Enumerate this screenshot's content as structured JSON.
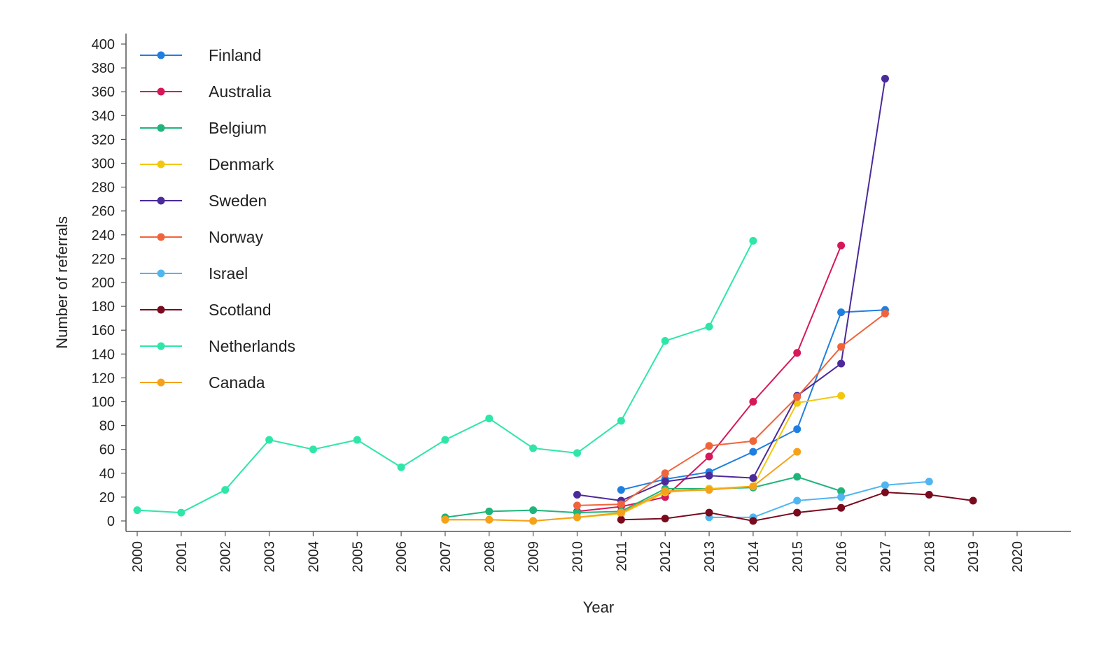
{
  "chart_data": {
    "type": "line",
    "title": "",
    "xlabel": "Year",
    "ylabel": "Number of referrals",
    "xlim": [
      2000,
      2020
    ],
    "ylim": [
      0,
      400
    ],
    "x_ticks": [
      2000,
      2001,
      2002,
      2003,
      2004,
      2005,
      2006,
      2007,
      2008,
      2009,
      2010,
      2011,
      2012,
      2013,
      2014,
      2015,
      2016,
      2017,
      2018,
      2019,
      2020
    ],
    "y_ticks": [
      0,
      20,
      40,
      60,
      80,
      100,
      120,
      140,
      160,
      180,
      200,
      220,
      240,
      260,
      280,
      300,
      320,
      340,
      360,
      380,
      400
    ],
    "grid": false,
    "legend_placement": "top-left",
    "series": [
      {
        "name": "Finland",
        "color": "#1f7fe0",
        "x": [
          2011,
          2012,
          2013,
          2014,
          2015,
          2016,
          2017
        ],
        "values": [
          26,
          35,
          41,
          58,
          77,
          175,
          177
        ]
      },
      {
        "name": "Australia",
        "color": "#d6185a",
        "x": [
          2010,
          2011,
          2012,
          2013,
          2014,
          2015,
          2016
        ],
        "values": [
          8,
          12,
          20,
          54,
          100,
          141,
          231
        ]
      },
      {
        "name": "Belgium",
        "color": "#1fb57a",
        "x": [
          2007,
          2008,
          2009,
          2010,
          2011,
          2012,
          2013,
          2014,
          2015,
          2016
        ],
        "values": [
          3,
          8,
          9,
          7,
          8,
          27,
          27,
          28,
          37,
          25
        ]
      },
      {
        "name": "Denmark",
        "color": "#f2c80f",
        "x": [
          2007,
          2008,
          2009,
          2010,
          2011,
          2012,
          2013,
          2014,
          2015,
          2016
        ],
        "values": [
          1,
          1,
          0,
          3,
          6,
          24,
          27,
          29,
          99,
          105
        ]
      },
      {
        "name": "Sweden",
        "color": "#4b2a9a",
        "x": [
          2010,
          2011,
          2012,
          2013,
          2014,
          2015,
          2016,
          2017
        ],
        "values": [
          22,
          17,
          33,
          38,
          36,
          105,
          132,
          371
        ]
      },
      {
        "name": "Norway",
        "color": "#f0643c",
        "x": [
          2010,
          2011,
          2012,
          2013,
          2014,
          2015,
          2016,
          2017
        ],
        "values": [
          13,
          14,
          40,
          63,
          67,
          104,
          146,
          174
        ]
      },
      {
        "name": "Israel",
        "color": "#4fb6f0",
        "x": [
          2013,
          2014,
          2015,
          2016,
          2017,
          2018
        ],
        "values": [
          3,
          3,
          17,
          20,
          30,
          33
        ]
      },
      {
        "name": "Scotland",
        "color": "#7a0a1e",
        "x": [
          2011,
          2012,
          2013,
          2014,
          2015,
          2016,
          2017,
          2018,
          2019
        ],
        "values": [
          1,
          2,
          7,
          0,
          7,
          11,
          24,
          22,
          17
        ]
      },
      {
        "name": "Netherlands",
        "color": "#2ee6a8",
        "x": [
          2000,
          2001,
          2002,
          2003,
          2004,
          2005,
          2006,
          2007,
          2008,
          2009,
          2010,
          2011,
          2012,
          2013,
          2014
        ],
        "values": [
          9,
          7,
          26,
          68,
          60,
          68,
          45,
          68,
          86,
          61,
          57,
          84,
          151,
          163,
          235
        ]
      },
      {
        "name": "Canada",
        "color": "#f5a21a",
        "x": [
          2007,
          2008,
          2009,
          2010,
          2011,
          2012,
          2013,
          2014,
          2015
        ],
        "values": [
          1,
          1,
          0,
          3,
          7,
          25,
          26,
          29,
          58
        ]
      }
    ]
  }
}
